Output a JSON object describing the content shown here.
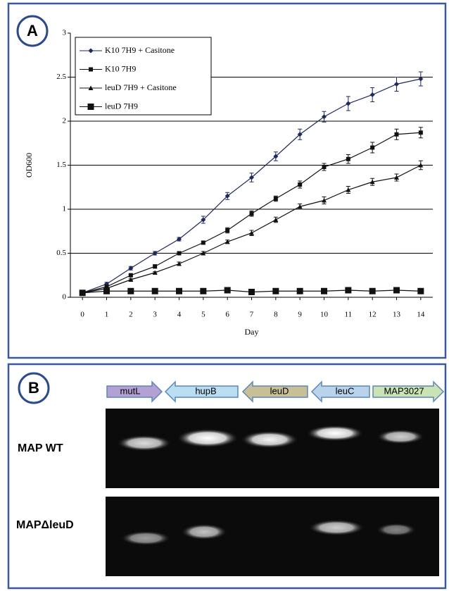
{
  "chart_data": {
    "type": "line",
    "panel": "A",
    "xlabel": "Day",
    "ylabel": "OD600",
    "x": [
      0,
      1,
      2,
      3,
      4,
      5,
      6,
      7,
      8,
      9,
      10,
      11,
      12,
      13,
      14
    ],
    "xlim": [
      -0.5,
      14.5
    ],
    "xticks": [
      0,
      1,
      2,
      3,
      4,
      5,
      6,
      7,
      8,
      9,
      10,
      11,
      12,
      13,
      14
    ],
    "ylim": [
      0,
      3
    ],
    "yticks": [
      0,
      0.5,
      1,
      1.5,
      2,
      2.5,
      3
    ],
    "grid": true,
    "legend": "upper left",
    "series": [
      {
        "name": "K10 7H9 + Casitone",
        "color": "#1f2a5a",
        "marker": "diamond",
        "values": [
          0.05,
          0.15,
          0.33,
          0.5,
          0.66,
          0.88,
          1.15,
          1.36,
          1.6,
          1.85,
          2.05,
          2.2,
          2.3,
          2.42,
          2.48
        ],
        "errors": [
          0.01,
          0.02,
          0.02,
          0.02,
          0.02,
          0.04,
          0.04,
          0.05,
          0.05,
          0.06,
          0.06,
          0.08,
          0.08,
          0.08,
          0.08
        ]
      },
      {
        "name": "K10 7H9",
        "color": "#111111",
        "marker": "square",
        "values": [
          0.05,
          0.12,
          0.25,
          0.35,
          0.5,
          0.62,
          0.76,
          0.95,
          1.12,
          1.28,
          1.48,
          1.57,
          1.7,
          1.85,
          1.87
        ],
        "errors": [
          0.01,
          0.01,
          0.01,
          0.02,
          0.02,
          0.02,
          0.03,
          0.03,
          0.03,
          0.04,
          0.04,
          0.05,
          0.06,
          0.06,
          0.06
        ]
      },
      {
        "name": "leuD 7H9 + Casitone",
        "color": "#111111",
        "marker": "triangle",
        "values": [
          0.05,
          0.1,
          0.2,
          0.28,
          0.38,
          0.5,
          0.63,
          0.73,
          0.88,
          1.03,
          1.1,
          1.22,
          1.31,
          1.36,
          1.5
        ],
        "errors": [
          0.01,
          0.01,
          0.01,
          0.01,
          0.02,
          0.02,
          0.02,
          0.03,
          0.03,
          0.03,
          0.04,
          0.04,
          0.04,
          0.04,
          0.05
        ]
      },
      {
        "name": "leuD 7H9",
        "color": "#111111",
        "marker": "big-square",
        "values": [
          0.05,
          0.07,
          0.07,
          0.07,
          0.07,
          0.07,
          0.08,
          0.06,
          0.07,
          0.07,
          0.07,
          0.08,
          0.07,
          0.08,
          0.07
        ]
      }
    ]
  },
  "gel": {
    "panel": "B",
    "genes": [
      "mutL",
      "hupB",
      "leuD",
      "leuC",
      "MAP3027"
    ],
    "rows": [
      "MAP WT",
      "MAPΔleuD"
    ]
  }
}
